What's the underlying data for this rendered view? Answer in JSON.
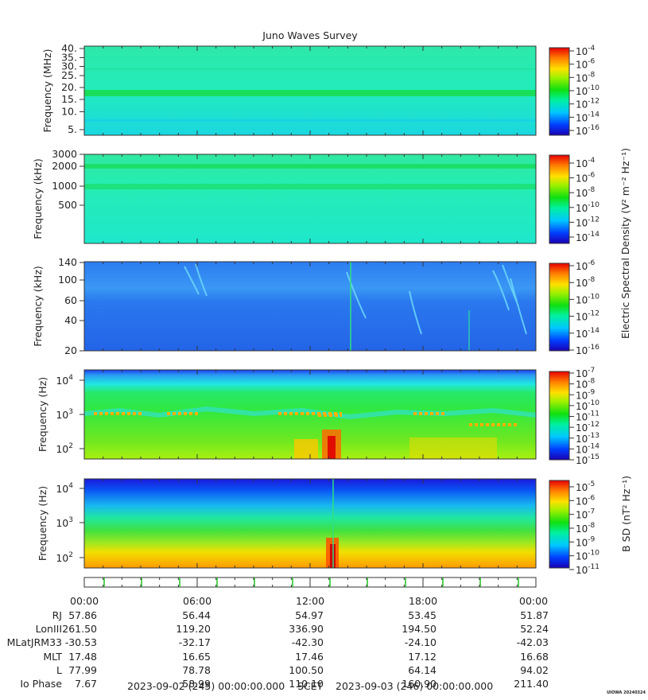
{
  "title": "Juno Waves Survey",
  "credit": "UIOWA 20240324",
  "colorbar_label_electric": "Electric Spectral Density (V² m⁻² Hz⁻¹)",
  "colorbar_label_magnetic": "B SD (nT² Hz⁻¹)",
  "footer": {
    "start": "2023-09-02 (245) 00:00:00.000",
    "scet": "SCET",
    "end": "2023-09-03 (246) 00:00:00.000"
  },
  "ephemeris": {
    "time_labels": [
      "00:00",
      "06:00",
      "12:00",
      "18:00",
      "00:00"
    ],
    "rows": [
      {
        "label": "RJ",
        "values": [
          "57.86",
          "56.44",
          "54.97",
          "53.45",
          "51.87"
        ]
      },
      {
        "label": "LonIII",
        "values": [
          "261.50",
          "119.20",
          "336.90",
          "194.50",
          "52.24"
        ]
      },
      {
        "label": "MLatJRM33",
        "values": [
          "-30.53",
          "-32.17",
          "-42.30",
          "-24.10",
          "-42.03"
        ]
      },
      {
        "label": "MLT",
        "values": [
          "17.48",
          "16.65",
          "17.46",
          "17.12",
          "16.68"
        ]
      },
      {
        "label": "L",
        "values": [
          "77.99",
          "78.78",
          "100.50",
          "64.14",
          "94.02"
        ]
      },
      {
        "label": "Io Phase",
        "values": [
          "7.67",
          "58.99",
          "110.10",
          "160.90",
          "211.40"
        ]
      }
    ]
  },
  "chart_data": [
    {
      "type": "heatmap",
      "name": "panel-mhz",
      "ylabel": "Frequency (MHz)",
      "yticks": [
        "40.",
        "35.",
        "30.",
        "25.",
        "20.",
        "15.",
        "10.",
        "5."
      ],
      "ylim": [
        3.5,
        41
      ],
      "colorbar_ticks": [
        "-4",
        "-6",
        "-8",
        "-10",
        "-12",
        "-14",
        "-16"
      ]
    },
    {
      "type": "heatmap",
      "name": "panel-khz-high",
      "ylabel": "Frequency (kHz)",
      "yticks": [
        "3000",
        "2000",
        "1000",
        "500"
      ],
      "colorbar_ticks": [
        "-4",
        "-6",
        "-8",
        "-10",
        "-12",
        "-14"
      ]
    },
    {
      "type": "heatmap",
      "name": "panel-khz-low",
      "ylabel": "Frequency (kHz)",
      "yticks": [
        "140",
        "100",
        "60",
        "40",
        "20"
      ],
      "colorbar_ticks": [
        "-6",
        "-8",
        "-10",
        "-12",
        "-14",
        "-16"
      ]
    },
    {
      "type": "heatmap",
      "name": "panel-hz-electric",
      "ylabel": "Frequency (Hz)",
      "yticks": [
        "4",
        "3",
        "2"
      ],
      "colorbar_ticks": [
        "-7",
        "-8",
        "-9",
        "-10",
        "-11",
        "-12",
        "-13",
        "-14",
        "-15"
      ]
    },
    {
      "type": "heatmap",
      "name": "panel-hz-magnetic",
      "ylabel": "Frequency (Hz)",
      "yticks": [
        "4",
        "3",
        "2"
      ],
      "colorbar_ticks": [
        "-5",
        "-6",
        "-7",
        "-8",
        "-9",
        "-10",
        "-11"
      ]
    }
  ]
}
